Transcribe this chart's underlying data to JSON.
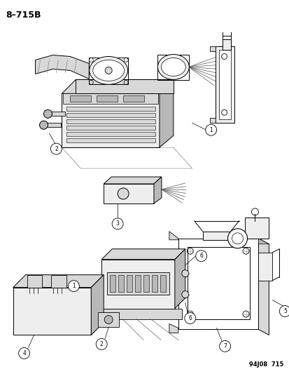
{
  "title": "8–715B",
  "watermark": "94J08  715",
  "background_color": "#ffffff",
  "text_color": "#000000",
  "line_color": "#000000",
  "title_fontsize": 9,
  "watermark_fontsize": 6,
  "fig_width": 4.14,
  "fig_height": 5.33,
  "dpi": 100,
  "gray_light": "#c8c8c8",
  "gray_mid": "#a0a0a0",
  "gray_dark": "#707070",
  "fill_light": "#eeeeee",
  "fill_mid": "#d8d8d8",
  "fill_dark": "#b8b8b8"
}
